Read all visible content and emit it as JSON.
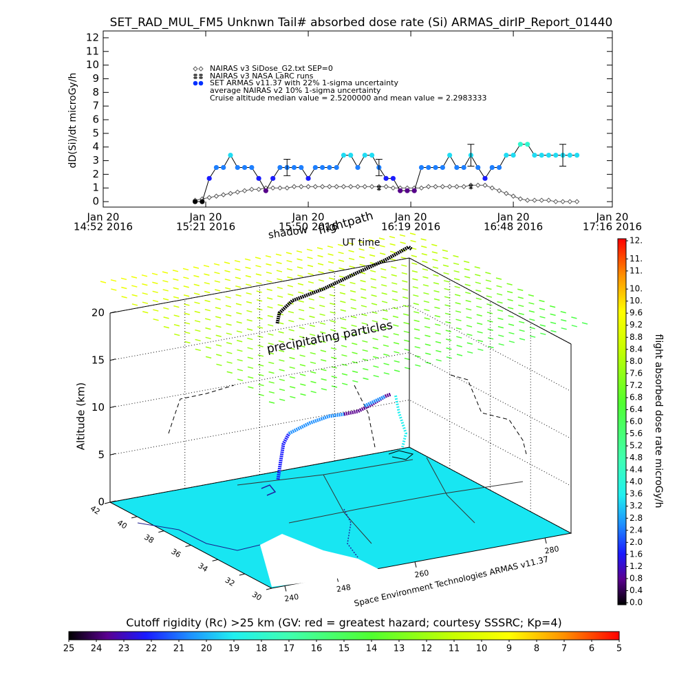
{
  "chart_data": [
    {
      "type": "line",
      "title": "SET_RAD_MUL_FM5 Unknwn Tail#  absorbed dose rate (Si) ARMAS_dirIP_Report_01440",
      "y_label": "dD(Si)/dt microGy/h",
      "x_label": "UT time",
      "xlim": [
        "2016-01-20 14:52",
        "2016-01-20 17:16"
      ],
      "xticks": [
        {
          "value": "2016-01-20 14:52",
          "label": [
            "Jan 20",
            "14:52 2016"
          ]
        },
        {
          "value": "2016-01-20 15:21",
          "label": [
            "Jan 20",
            "15:21 2016"
          ]
        },
        {
          "value": "2016-01-20 15:50",
          "label": [
            "Jan 20",
            "15:50 2016"
          ]
        },
        {
          "value": "2016-01-20 16:19",
          "label": [
            "Jan 20",
            "16:19 2016"
          ]
        },
        {
          "value": "2016-01-20 16:48",
          "label": [
            "Jan 20",
            "16:48 2016"
          ]
        },
        {
          "value": "2016-01-20 17:16",
          "label": [
            "Jan 20",
            "17:16 2016"
          ]
        }
      ],
      "ylim": [
        -0.4,
        12.5
      ],
      "yticks": [
        0,
        1,
        2,
        3,
        4,
        5,
        6,
        7,
        8,
        9,
        10,
        11,
        12
      ],
      "x": [
        "2016-01-20 15:18",
        "2016-01-20 15:20",
        "2016-01-20 15:22",
        "2016-01-20 15:24",
        "2016-01-20 15:26",
        "2016-01-20 15:28",
        "2016-01-20 15:30",
        "2016-01-20 15:32",
        "2016-01-20 15:34",
        "2016-01-20 15:36",
        "2016-01-20 15:38",
        "2016-01-20 15:40",
        "2016-01-20 15:42",
        "2016-01-20 15:44",
        "2016-01-20 15:46",
        "2016-01-20 15:48",
        "2016-01-20 15:50",
        "2016-01-20 15:52",
        "2016-01-20 15:54",
        "2016-01-20 15:56",
        "2016-01-20 15:58",
        "2016-01-20 16:00",
        "2016-01-20 16:02",
        "2016-01-20 16:04",
        "2016-01-20 16:06",
        "2016-01-20 16:08",
        "2016-01-20 16:10",
        "2016-01-20 16:12",
        "2016-01-20 16:14",
        "2016-01-20 16:16",
        "2016-01-20 16:18",
        "2016-01-20 16:20",
        "2016-01-20 16:22",
        "2016-01-20 16:24",
        "2016-01-20 16:26",
        "2016-01-20 16:28",
        "2016-01-20 16:30",
        "2016-01-20 16:32",
        "2016-01-20 16:34",
        "2016-01-20 16:36",
        "2016-01-20 16:38",
        "2016-01-20 16:40",
        "2016-01-20 16:42",
        "2016-01-20 16:44",
        "2016-01-20 16:46",
        "2016-01-20 16:48",
        "2016-01-20 16:50",
        "2016-01-20 16:52",
        "2016-01-20 16:54",
        "2016-01-20 16:56",
        "2016-01-20 16:58",
        "2016-01-20 17:00",
        "2016-01-20 17:02",
        "2016-01-20 17:04",
        "2016-01-20 17:06"
      ],
      "series": [
        {
          "name": "NAIRAS v3 SiDose_G2.txt SEP=0",
          "marker": "diamond",
          "color": "#555555",
          "values": [
            0.1,
            0.2,
            0.3,
            0.4,
            0.5,
            0.6,
            0.7,
            0.8,
            0.9,
            0.9,
            1.0,
            1.0,
            1.0,
            1.0,
            1.1,
            1.1,
            1.1,
            1.1,
            1.1,
            1.1,
            1.1,
            1.1,
            1.1,
            1.1,
            1.1,
            1.1,
            1.1,
            1.1,
            1.0,
            1.0,
            1.0,
            1.0,
            1.0,
            1.1,
            1.1,
            1.1,
            1.1,
            1.1,
            1.1,
            1.2,
            1.2,
            1.2,
            1.0,
            0.8,
            0.6,
            0.4,
            0.2,
            0.1,
            0.1,
            0.1,
            0.1,
            0,
            0,
            0,
            0
          ]
        },
        {
          "name": "NAIRAS v3 NASA LaRC runs",
          "marker": "plus",
          "color": "#000000",
          "x": [
            "2016-01-20 16:10",
            "2016-01-20 16:36"
          ],
          "values": [
            1.0,
            1.1
          ]
        },
        {
          "name": "SET ARMAS v11.37 with 22% 1-sigma uncertainty",
          "marker": "dot",
          "color": "#0030ff",
          "line_color": "#000000",
          "values": [
            0,
            0,
            1.7,
            2.5,
            2.5,
            3.4,
            2.5,
            2.5,
            2.5,
            1.7,
            0.8,
            1.7,
            2.5,
            2.5,
            2.5,
            2.5,
            1.7,
            2.5,
            2.5,
            2.5,
            2.5,
            3.4,
            3.4,
            2.5,
            3.4,
            3.4,
            2.5,
            1.7,
            1.7,
            0.8,
            0.8,
            0.8,
            2.5,
            2.5,
            2.5,
            2.5,
            3.4,
            2.5,
            2.5,
            3.4,
            2.5,
            1.7,
            2.5,
            2.5,
            3.4,
            3.4,
            4.2,
            4.2,
            3.4,
            3.4,
            3.4,
            3.4,
            3.4,
            3.4,
            3.4
          ]
        },
        {
          "name": "average NAIRAS v2 10% 1-sigma uncertainty",
          "marker": "errorbar",
          "color": "#000000",
          "x": [
            "2016-01-20 15:44",
            "2016-01-20 16:10",
            "2016-01-20 16:36",
            "2016-01-20 17:02"
          ],
          "values": [
            2.5,
            2.5,
            3.4,
            3.4
          ],
          "errors": [
            0.6,
            0.6,
            0.8,
            0.8
          ]
        }
      ],
      "annotation": "Cruise altitude median value = 2.5200000 and mean value = 2.2983333"
    },
    {
      "type": "flightpath3d",
      "z_label": "Altitude (km)",
      "zlim": [
        0,
        20
      ],
      "zticks": [
        0,
        5,
        10,
        15,
        20
      ],
      "lat_lim": [
        42,
        30
      ],
      "lat_ticks": [
        42,
        40,
        38,
        36,
        34,
        32,
        30
      ],
      "lon_lim": [
        238,
        284
      ],
      "lon_ticks": [
        240,
        248,
        260,
        280
      ],
      "annotations": [
        "shadow",
        "flightpath",
        "precipitating particles"
      ],
      "credit": "Space Environment Technologies ARMAS v11.37"
    },
    {
      "type": "colorbar",
      "orientation": "vertical",
      "label": "flight absorbed dose rate microGy/h",
      "ylim": [
        0,
        12
      ],
      "yticks": [
        {
          "value": 0,
          "label": "0.0"
        },
        0.4,
        0.8,
        1.2,
        1.6,
        {
          "value": 2,
          "label": "2.0"
        },
        2.4,
        2.8,
        3.2,
        3.6,
        {
          "value": 4,
          "label": "4.0"
        },
        4.4,
        4.8,
        5.2,
        5.6,
        {
          "value": 6,
          "label": "6.0"
        },
        6.4,
        6.8,
        7.2,
        7.6,
        {
          "value": 8,
          "label": "8.0"
        },
        8.4,
        8.8,
        9.2,
        9.6,
        {
          "value": 10,
          "label": "10."
        },
        {
          "value": 10.4,
          "label": "10."
        },
        {
          "value": 11,
          "label": "11."
        },
        {
          "value": 11.4,
          "label": "11."
        },
        {
          "value": 12,
          "label": "12."
        }
      ]
    },
    {
      "type": "colorbar",
      "orientation": "horizontal",
      "title": "Cutoff rigidity (Rc) >25 km (GV: red = greatest hazard; courtesy SSSRC; Kp=4)",
      "xlim": [
        25,
        5
      ],
      "xticks": [
        25,
        24,
        23,
        22,
        21,
        20,
        19,
        18,
        17,
        16,
        15,
        14,
        13,
        12,
        11,
        10,
        9,
        8,
        7,
        6,
        5
      ]
    }
  ]
}
